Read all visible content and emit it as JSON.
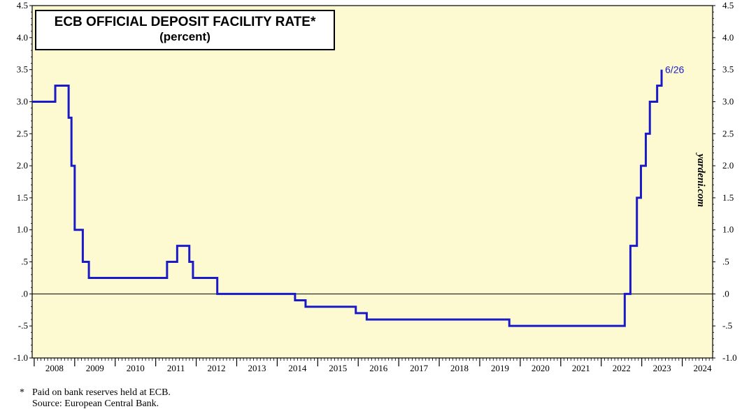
{
  "chart_data": {
    "type": "line",
    "title": "ECB OFFICIAL DEPOSIT FACILITY RATE*",
    "subtitle": "(percent)",
    "xlabel": "",
    "ylabel": "",
    "xlim": [
      2007.95,
      2024.75
    ],
    "ylim": [
      -1.0,
      4.5
    ],
    "grid": false,
    "y_ticks": [
      -1.0,
      -0.5,
      0.0,
      0.5,
      1.0,
      1.5,
      2.0,
      2.5,
      3.0,
      3.5,
      4.0,
      4.5
    ],
    "y_tick_labels": [
      "-1.0",
      "-.5",
      ".0",
      ".5",
      "1.0",
      "1.5",
      "2.0",
      "2.5",
      "3.0",
      "3.5",
      "4.0",
      "4.5"
    ],
    "x_tick_labels": [
      "2008",
      "2009",
      "2010",
      "2011",
      "2012",
      "2013",
      "2014",
      "2015",
      "2016",
      "2017",
      "2018",
      "2019",
      "2020",
      "2021",
      "2022",
      "2023",
      "2024"
    ],
    "x_tick_years": [
      2008,
      2009,
      2010,
      2011,
      2012,
      2013,
      2014,
      2015,
      2016,
      2017,
      2018,
      2019,
      2020,
      2021,
      2022,
      2023,
      2024
    ],
    "zero_line": 0.0,
    "series": [
      {
        "name": "ECB deposit facility rate",
        "color": "#1a1ac8",
        "step": true,
        "x": [
          2007.95,
          2008.52,
          2008.85,
          2008.92,
          2009.0,
          2009.2,
          2009.35,
          2009.42,
          2011.28,
          2011.53,
          2011.83,
          2011.92,
          2012.52,
          2014.44,
          2014.7,
          2015.94,
          2016.21,
          2019.73,
          2022.58,
          2022.72,
          2022.88,
          2022.98,
          2023.1,
          2023.2,
          2023.38,
          2023.49
        ],
        "values": [
          3.0,
          3.25,
          2.75,
          2.0,
          1.0,
          0.5,
          0.25,
          0.25,
          0.5,
          0.75,
          0.5,
          0.25,
          0.0,
          -0.1,
          -0.2,
          -0.3,
          -0.4,
          -0.5,
          0.0,
          0.75,
          1.5,
          2.0,
          2.5,
          3.0,
          3.25,
          3.5
        ]
      }
    ],
    "annotations": [
      {
        "text": "6/26",
        "x": 2023.49,
        "y": 3.5
      }
    ]
  },
  "watermark": "yardeni.com",
  "footnote": {
    "marker": "*",
    "note": "Paid on bank reserves held at ECB.",
    "source": "Source: European Central Bank."
  },
  "colors": {
    "plot_background": "#fdfad2",
    "series": "#1a1ac8",
    "axis": "#000000"
  }
}
